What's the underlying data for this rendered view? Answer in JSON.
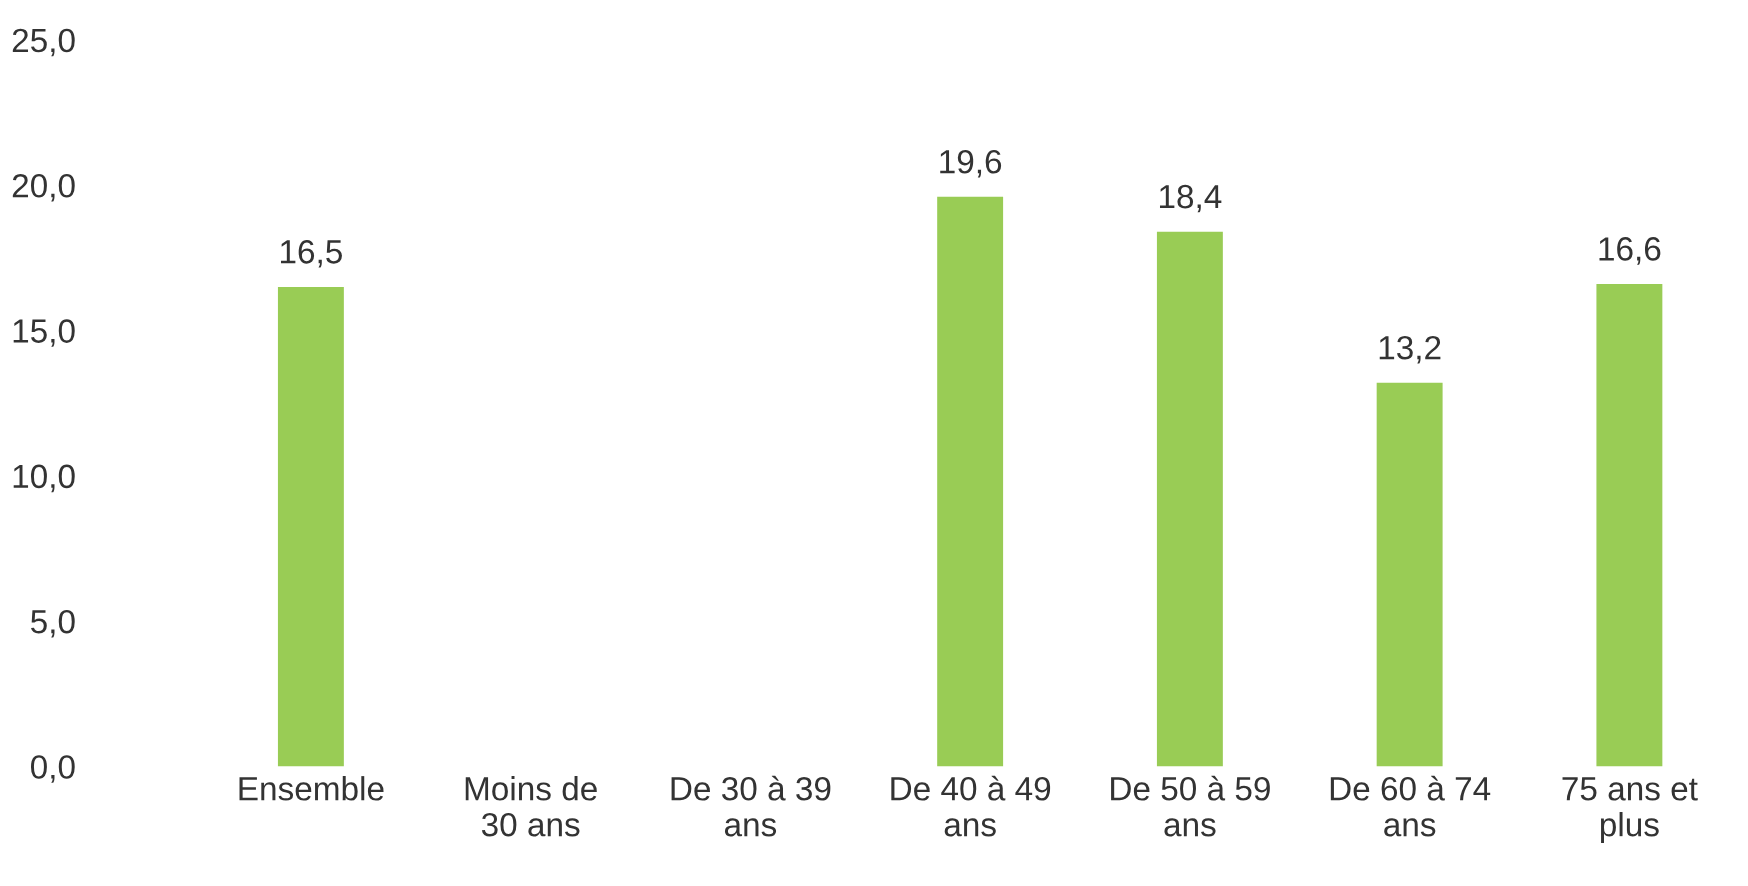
{
  "chart_data": {
    "type": "bar",
    "categories": [
      "Ensemble",
      "Moins de\n30 ans",
      "De 30 à 39\nans",
      "De 40 à 49\nans",
      "De 50 à 59\nans",
      "De 60 à 74\nans",
      "75 ans et\nplus"
    ],
    "values": [
      16.5,
      null,
      null,
      19.6,
      18.4,
      13.2,
      16.6
    ],
    "value_labels": [
      "16,5",
      null,
      null,
      "19,6",
      "18,4",
      "13,2",
      "16,6"
    ],
    "color": "#99cc55",
    "ylim": [
      0,
      25
    ],
    "yticks": [
      {
        "value": 0,
        "label": "0,0"
      },
      {
        "value": 5,
        "label": "5,0"
      },
      {
        "value": 10,
        "label": "10,0"
      },
      {
        "value": 15,
        "label": "15,0"
      },
      {
        "value": 20,
        "label": "20,0"
      },
      {
        "value": 25,
        "label": "25,0"
      }
    ],
    "grid": false,
    "legend": false
  }
}
